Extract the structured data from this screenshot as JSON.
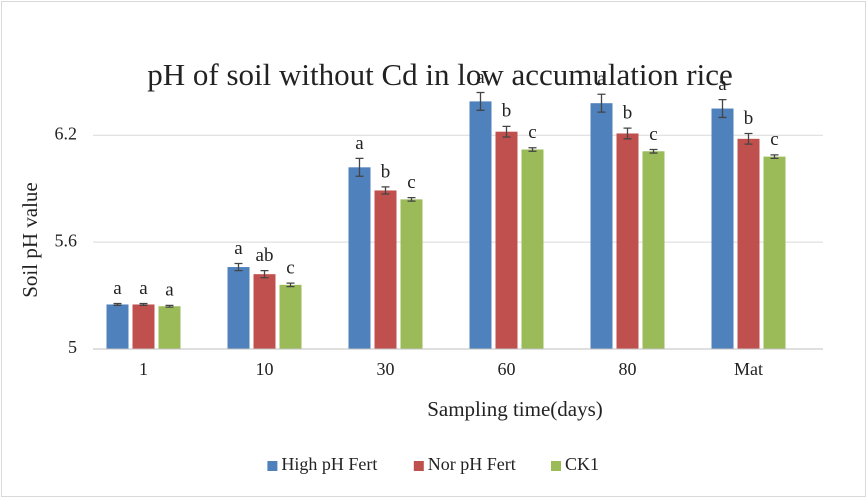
{
  "chart_data": {
    "type": "bar",
    "title": "pH of soil without Cd in low accumulation rice",
    "x_label": "Sampling time(days)",
    "y_label": "Soil pH value",
    "categories": [
      "1",
      "10",
      "30",
      "60",
      "80",
      "Mat"
    ],
    "series": [
      {
        "name": "High pH Fert",
        "color": "#4f81bd",
        "values": [
          5.25,
          5.46,
          6.02,
          6.39,
          6.38,
          6.35
        ],
        "errors": [
          0.005,
          0.02,
          0.05,
          0.05,
          0.05,
          0.05
        ],
        "letters": [
          "a",
          "a",
          "a",
          "a",
          "a",
          "a"
        ]
      },
      {
        "name": "Nor pH Fert",
        "color": "#c0504d",
        "values": [
          5.25,
          5.42,
          5.89,
          6.22,
          6.21,
          6.18
        ],
        "errors": [
          0.005,
          0.02,
          0.02,
          0.03,
          0.03,
          0.03
        ],
        "letters": [
          "a",
          "ab",
          "b",
          "b",
          "b",
          "b"
        ]
      },
      {
        "name": "CK1",
        "color": "#9bbb59",
        "values": [
          5.24,
          5.36,
          5.84,
          6.12,
          6.11,
          6.08
        ],
        "errors": [
          0.005,
          0.01,
          0.01,
          0.01,
          0.01,
          0.01
        ],
        "letters": [
          "a",
          "c",
          "c",
          "c",
          "c",
          "c"
        ]
      }
    ],
    "ylim": [
      5,
      6.6
    ],
    "yticks": [
      5,
      5.6,
      6.2
    ],
    "grid": true,
    "legend": "bottom"
  }
}
